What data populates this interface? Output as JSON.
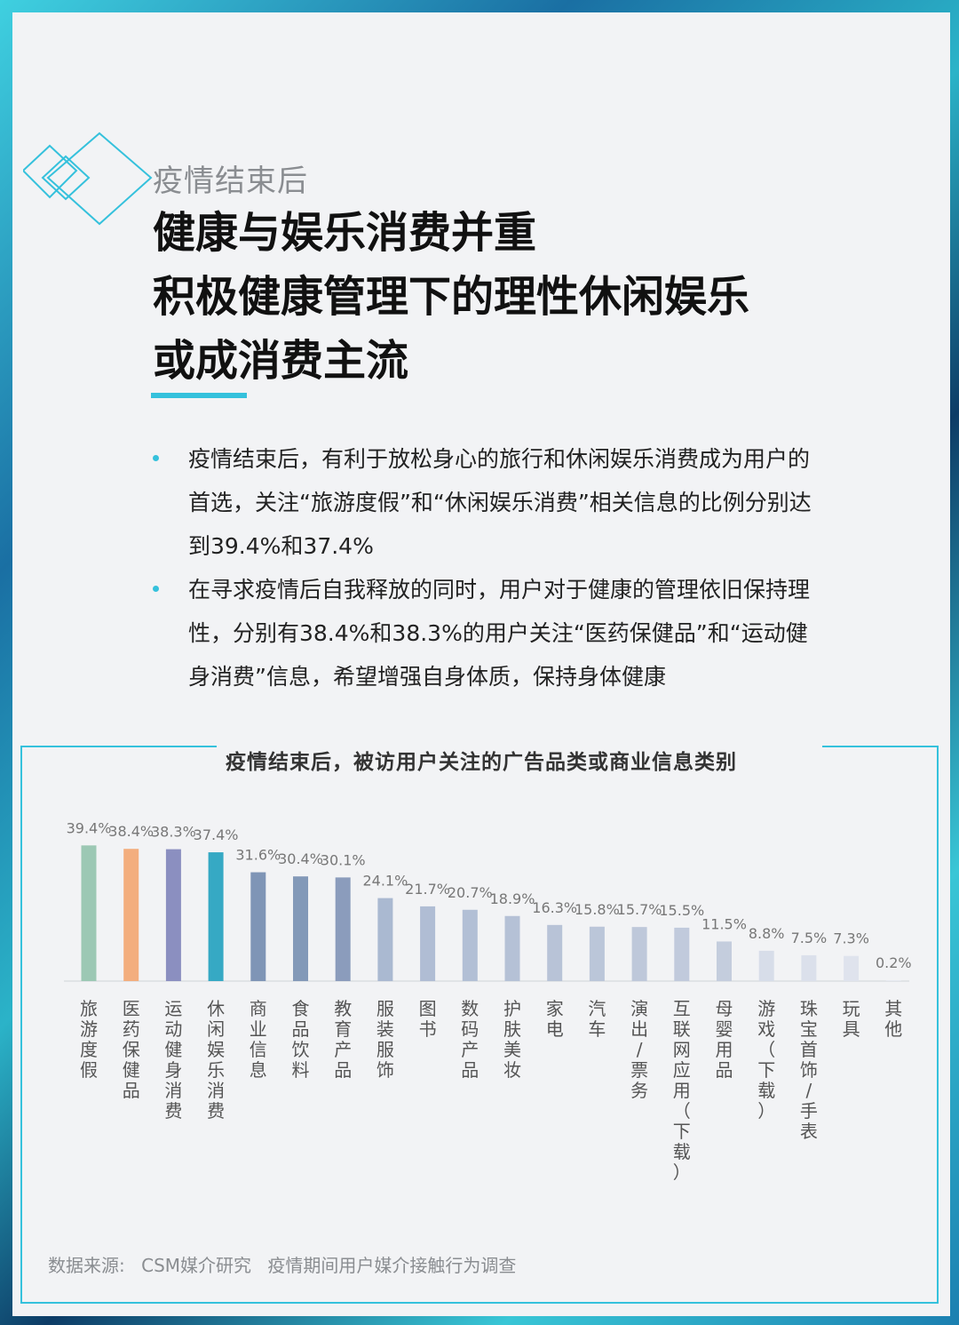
{
  "kicker": "疫情结束后",
  "headline": [
    "健康与娱乐消费并重",
    "积极健康管理下的理性休闲娱乐",
    "或成消费主流"
  ],
  "bullets": [
    "疫情结束后，有利于放松身心的旅行和休闲娱乐消费成为用户的首选，关注“旅游度假”和“休闲娱乐消费”相关信息的比例分别达到39.4%和37.4%",
    "在寻求疫情后自我释放的同时，用户对于健康的管理依旧保持理性，分别有38.4%和38.3%的用户关注“医药保健品”和“运动健身消费”信息，希望增强自身体质，保持身体健康"
  ],
  "source": {
    "label": "数据来源:",
    "org": "CSM媒介研究",
    "survey": "疫情期间用户媒介接触行为调查"
  },
  "colors": {
    "accent": "#35c1dc",
    "bars": [
      "#9cc8b4",
      "#f3ae7e",
      "#8b8fc0",
      "#36a9c4",
      "#7f95b6",
      "#8399b8",
      "#8b9cbc",
      "#aab9d1",
      "#b0bdd4",
      "#b2bfd5",
      "#b5c1d6",
      "#b8c3d7",
      "#bbc6d9",
      "#bec8da",
      "#c1cadc",
      "#c4cddd",
      "#d7dde9",
      "#dbe0eb",
      "#dfe3ed",
      "#e3e6ef"
    ]
  },
  "chart_data": {
    "type": "bar",
    "title": "疫情结束后，被访用户关注的广告品类或商业信息类别",
    "categories": [
      "旅游度假",
      "医药保健品",
      "运动健身消费",
      "休闲娱乐消费",
      "商业信息",
      "食品饮料",
      "教育产品",
      "服装服饰",
      "图书",
      "数码产品",
      "护肤美妆",
      "家电",
      "汽车",
      "演出/票务",
      "互联网应用（下载）",
      "母婴用品",
      "游戏（下载）",
      "珠宝首饰/手表",
      "玩具",
      "其他"
    ],
    "values": [
      39.4,
      38.4,
      38.3,
      37.4,
      31.6,
      30.4,
      30.1,
      24.1,
      21.7,
      20.7,
      18.9,
      16.3,
      15.8,
      15.7,
      15.5,
      11.5,
      8.8,
      7.5,
      7.3,
      0.2
    ],
    "value_labels": [
      "39.4%",
      "38.4%",
      "38.3%",
      "37.4%",
      "31.6%",
      "30.4%",
      "30.1%",
      "24.1%",
      "21.7%",
      "20.7%",
      "18.9%",
      "16.3%",
      "15.8%",
      "15.7%",
      "15.5%",
      "11.5%",
      "8.8%",
      "7.5%",
      "7.3%",
      "0.2%"
    ],
    "ylim": [
      0,
      40
    ],
    "grid": false
  }
}
